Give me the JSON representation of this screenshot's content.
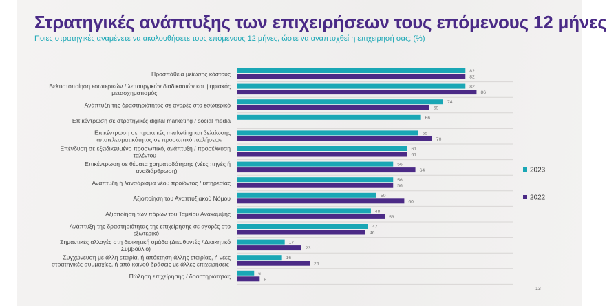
{
  "title": "Στρατηγικές ανάπτυξης των επιχειρήσεων τους επόμενους 12 μήνες",
  "subtitle": "Ποιες στρατηγικές αναμένετε να ακολουθήσετε τους επόμενους 12 μήνες, ώστε να αναπτυχθεί η επιχειρησή σας; (%)",
  "page_number": "13",
  "chart_data": {
    "type": "bar",
    "orientation": "horizontal",
    "title": "",
    "grid": false,
    "legend_position": "right",
    "categories": [
      [
        "Προσπάθεια μείωσης κόστους"
      ],
      [
        "Βελτιστοποίηση εσωτερικών / λειτουργικών διαδικασιών και ψηφιακός",
        "μετασχηματισμός"
      ],
      [
        "Ανάπτυξη της δραστηριότητας σε αγορές στο εσωτερικό"
      ],
      [
        "Επικέντρωση σε στρατηγικές digital marketing / social media"
      ],
      [
        "Επικέντρωση σε πρακτικές marketing και βελτίωσης",
        "αποτελεσματικότητας σε προσωπικό πωλήσεων"
      ],
      [
        "Επένδυση σε εξειδικευμένο προσωπικό, ανάπτυξη / προσέλκυση",
        "ταλέντου"
      ],
      [
        "Επικέντρωση σε θέματα χρηματοδότησης (νέες πηγές ή",
        "αναδιάρθρωση)"
      ],
      [
        "Ανάπτυξη ή λανσάρισμα νέου προϊόντος / υπηρεσίας"
      ],
      [
        "Αξιοποίηση του Αναπτυξιακού Νόμου"
      ],
      [
        "Αξιοποίηση των πόρων του Ταμείου Ανάκαμψης"
      ],
      [
        "Ανάπτυξη της δραστηριότητας της επιχείρησης σε αγορές στο",
        "εξωτερικό"
      ],
      [
        "Σημαντικές αλλαγές στη διοικητική ομάδα (Διευθυντές / Διοικητικό",
        "Συμβούλιο)"
      ],
      [
        "Συγχώνευση με άλλη εταιρία, ή απόκτηση άλλης εταιρίας, ή νέες",
        "στρατηγικές συμμαχίες, ή από κοινού δράσεις με άλλες επιχειρήσεις"
      ],
      [
        "Πώληση επιχείρησης / δραστηριότητας"
      ]
    ],
    "series": [
      {
        "name": "2023",
        "color": "#1aa7b5",
        "values": [
          82,
          82,
          74,
          66,
          65,
          61,
          56,
          56,
          50,
          48,
          47,
          17,
          16,
          6
        ]
      },
      {
        "name": "2022",
        "color": "#4b2a86",
        "values": [
          82,
          86,
          69,
          null,
          70,
          61,
          64,
          56,
          60,
          53,
          46,
          23,
          26,
          8
        ]
      }
    ]
  }
}
